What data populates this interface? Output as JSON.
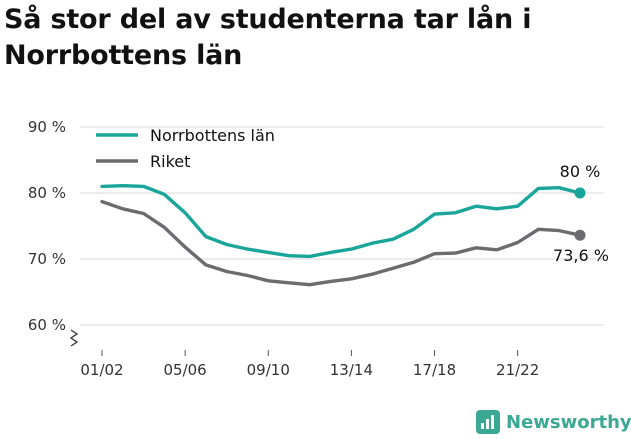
{
  "title": "Så stor del av studenterna tar lån i Norrbottens län",
  "brand": "Newsworthy",
  "colors": {
    "accent": "#1aa59a",
    "secondary": "#6b6b70",
    "grid": "#d9d9d9",
    "brand": "#3aa893"
  },
  "chart_data": {
    "type": "line",
    "title": "Så stor del av studenterna tar lån i Norrbottens län",
    "xlabel": "",
    "ylabel": "",
    "x": [
      "01/02",
      "02/03",
      "03/04",
      "04/05",
      "05/06",
      "06/07",
      "07/08",
      "08/09",
      "09/10",
      "10/11",
      "11/12",
      "12/13",
      "13/14",
      "14/15",
      "15/16",
      "16/17",
      "17/18",
      "18/19",
      "19/20",
      "20/21",
      "21/22",
      "22/23",
      "23/24",
      "24/25"
    ],
    "x_tick_labels": [
      "01/02",
      "05/06",
      "09/10",
      "13/14",
      "17/18",
      "21/22"
    ],
    "y_ticks": [
      60,
      70,
      80,
      90
    ],
    "y_tick_labels": [
      "60 %",
      "70 %",
      "80 %",
      "90 %"
    ],
    "ylim": [
      57,
      92
    ],
    "axis_break": true,
    "grid": true,
    "legend_position": "top-left",
    "series": [
      {
        "name": "Norrbottens län",
        "color": "#1aa59a",
        "values": [
          81.0,
          81.1,
          81.0,
          79.8,
          77.0,
          73.4,
          72.2,
          71.5,
          71.0,
          70.5,
          70.4,
          71.0,
          71.5,
          72.4,
          73.0,
          74.5,
          76.8,
          77.0,
          78.0,
          77.6,
          78.0,
          80.7,
          80.8,
          80.0
        ],
        "end_label": "80 %"
      },
      {
        "name": "Riket",
        "color": "#6b6b70",
        "values": [
          78.7,
          77.6,
          76.9,
          74.8,
          71.8,
          69.1,
          68.1,
          67.5,
          66.7,
          66.4,
          66.1,
          66.6,
          67.0,
          67.7,
          68.6,
          69.5,
          70.8,
          70.9,
          71.7,
          71.4,
          72.5,
          74.5,
          74.3,
          73.6
        ],
        "end_label": "73,6 %"
      }
    ]
  }
}
